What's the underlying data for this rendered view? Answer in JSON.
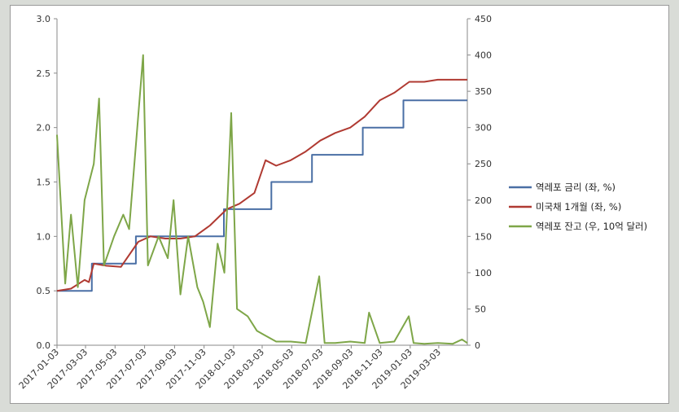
{
  "chart_data": {
    "type": "line",
    "x_tick_labels": [
      "2017-01-03",
      "2017-03-03",
      "2017-05-03",
      "2017-07-03",
      "2017-09-03",
      "2017-11-03",
      "2018-01-03",
      "2018-03-03",
      "2018-05-03",
      "2018-07-03",
      "2018-09-03",
      "2018-11-03",
      "2019-01-03",
      "2019-03-03"
    ],
    "x_range": [
      "2017-01-03",
      "2019-05-01"
    ],
    "y_left": {
      "ylim": [
        0,
        3.0
      ],
      "ticks": [
        "0.0",
        "0.5",
        "1.0",
        "1.5",
        "2.0",
        "2.5",
        "3.0"
      ]
    },
    "y_right": {
      "ylim": [
        0,
        450
      ],
      "ticks": [
        "0",
        "50",
        "100",
        "150",
        "200",
        "250",
        "300",
        "350",
        "400",
        "450"
      ]
    },
    "grid": false,
    "legend_position": "right",
    "series": [
      {
        "name": "역레포 금리 (좌, %)",
        "axis": "left",
        "color": "#4a6fa5",
        "step": true,
        "points": [
          [
            "2017-01-03",
            0.5
          ],
          [
            "2017-03-16",
            0.75
          ],
          [
            "2017-06-15",
            1.0
          ],
          [
            "2017-12-14",
            1.25
          ],
          [
            "2018-03-22",
            1.5
          ],
          [
            "2018-06-14",
            1.75
          ],
          [
            "2018-09-27",
            2.0
          ],
          [
            "2018-12-20",
            2.25
          ],
          [
            "2019-05-01",
            2.25
          ]
        ]
      },
      {
        "name": "미국채 1개월 (좌, %)",
        "axis": "left",
        "color": "#b03a32",
        "points": [
          [
            "2017-01-03",
            0.5
          ],
          [
            "2017-02-01",
            0.52
          ],
          [
            "2017-03-01",
            0.6
          ],
          [
            "2017-03-10",
            0.58
          ],
          [
            "2017-03-20",
            0.75
          ],
          [
            "2017-04-15",
            0.73
          ],
          [
            "2017-05-15",
            0.72
          ],
          [
            "2017-06-20",
            0.95
          ],
          [
            "2017-07-15",
            1.0
          ],
          [
            "2017-08-15",
            0.98
          ],
          [
            "2017-09-15",
            0.98
          ],
          [
            "2017-10-15",
            1.0
          ],
          [
            "2017-11-15",
            1.1
          ],
          [
            "2017-12-20",
            1.25
          ],
          [
            "2018-01-15",
            1.3
          ],
          [
            "2018-02-15",
            1.4
          ],
          [
            "2018-03-10",
            1.7
          ],
          [
            "2018-04-01",
            1.65
          ],
          [
            "2018-05-01",
            1.7
          ],
          [
            "2018-06-01",
            1.78
          ],
          [
            "2018-07-01",
            1.88
          ],
          [
            "2018-08-01",
            1.95
          ],
          [
            "2018-09-01",
            2.0
          ],
          [
            "2018-10-01",
            2.1
          ],
          [
            "2018-11-01",
            2.25
          ],
          [
            "2018-12-01",
            2.32
          ],
          [
            "2019-01-01",
            2.42
          ],
          [
            "2019-02-01",
            2.42
          ],
          [
            "2019-03-01",
            2.44
          ],
          [
            "2019-04-01",
            2.44
          ],
          [
            "2019-05-01",
            2.44
          ]
        ]
      },
      {
        "name": "역레포 잔고 (우, 10억 달러)",
        "axis": "right",
        "color": "#7ea648",
        "points": [
          [
            "2017-01-03",
            290
          ],
          [
            "2017-01-20",
            85
          ],
          [
            "2017-02-01",
            180
          ],
          [
            "2017-02-15",
            80
          ],
          [
            "2017-03-01",
            200
          ],
          [
            "2017-03-20",
            250
          ],
          [
            "2017-03-31",
            340
          ],
          [
            "2017-04-10",
            110
          ],
          [
            "2017-05-01",
            150
          ],
          [
            "2017-05-20",
            180
          ],
          [
            "2017-06-01",
            160
          ],
          [
            "2017-06-30",
            400
          ],
          [
            "2017-07-10",
            110
          ],
          [
            "2017-08-01",
            150
          ],
          [
            "2017-08-20",
            120
          ],
          [
            "2017-09-01",
            200
          ],
          [
            "2017-09-15",
            70
          ],
          [
            "2017-10-01",
            150
          ],
          [
            "2017-10-20",
            80
          ],
          [
            "2017-11-01",
            60
          ],
          [
            "2017-11-15",
            25
          ],
          [
            "2017-12-01",
            140
          ],
          [
            "2017-12-15",
            100
          ],
          [
            "2017-12-29",
            320
          ],
          [
            "2018-01-10",
            50
          ],
          [
            "2018-02-01",
            40
          ],
          [
            "2018-02-20",
            20
          ],
          [
            "2018-03-05",
            15
          ],
          [
            "2018-04-01",
            5
          ],
          [
            "2018-05-01",
            5
          ],
          [
            "2018-06-01",
            3
          ],
          [
            "2018-06-29",
            95
          ],
          [
            "2018-07-10",
            3
          ],
          [
            "2018-08-01",
            3
          ],
          [
            "2018-09-01",
            5
          ],
          [
            "2018-10-01",
            3
          ],
          [
            "2018-10-10",
            45
          ],
          [
            "2018-11-01",
            3
          ],
          [
            "2018-12-01",
            5
          ],
          [
            "2018-12-31",
            40
          ],
          [
            "2019-01-10",
            3
          ],
          [
            "2019-02-01",
            2
          ],
          [
            "2019-03-01",
            3
          ],
          [
            "2019-04-01",
            2
          ],
          [
            "2019-04-20",
            8
          ],
          [
            "2019-05-01",
            3
          ]
        ]
      }
    ]
  }
}
